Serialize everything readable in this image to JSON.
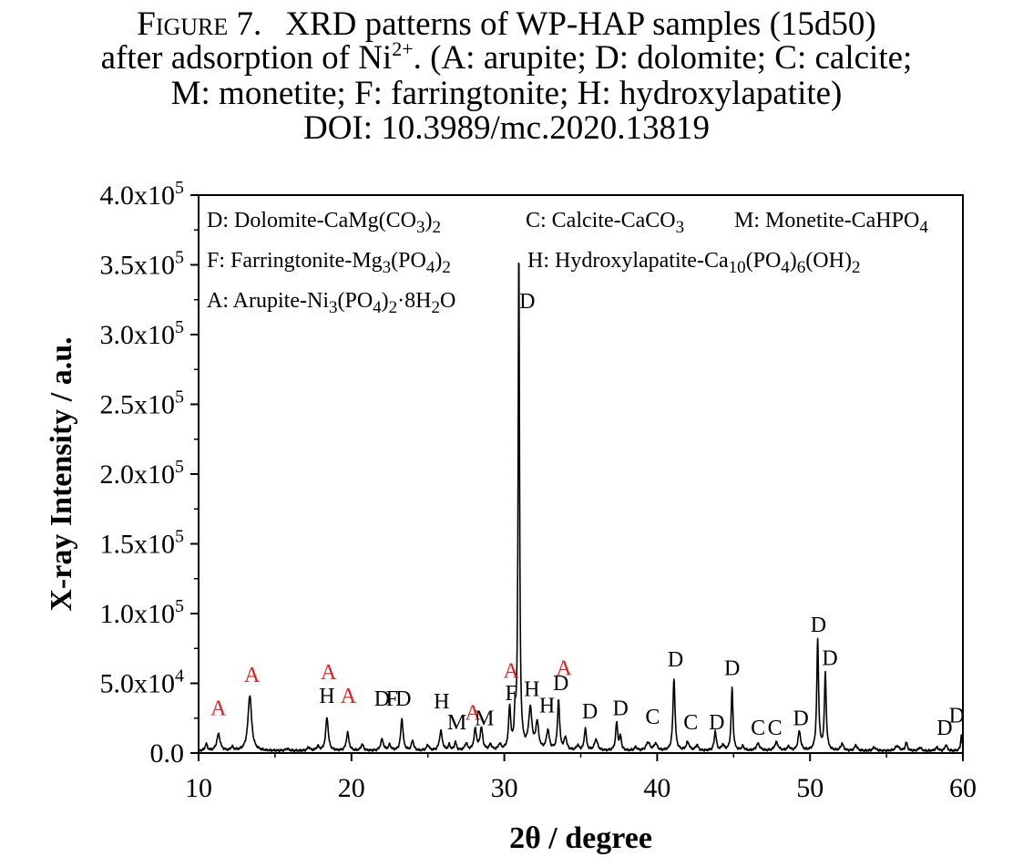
{
  "caption": {
    "lines": [
      [
        {
          "text": "Figure 7.",
          "style": "figure-label"
        },
        {
          "text": "",
          "style": "gap"
        },
        {
          "text": "XRD patterns of WP-HAP samples (15d50)"
        }
      ],
      [
        {
          "text": "after adsorption of Ni"
        },
        {
          "text": "2+",
          "style": "sup"
        },
        {
          "text": ". (A: arupite; D: dolomite; C: calcite;"
        }
      ],
      [
        {
          "text": "M: monetite; F: farringtonite; H: hydroxylapatite)"
        }
      ],
      [
        {
          "text": "DOI: 10.3989/mc.2020.13819"
        }
      ]
    ]
  },
  "chart_data": {
    "type": "line",
    "title": "",
    "xlabel": "2θ / degree",
    "ylabel": "X-ray Intensity / a.u.",
    "xlim": [
      10,
      60
    ],
    "ylim": [
      0,
      400000
    ],
    "x_ticks": [
      10,
      20,
      30,
      40,
      50,
      60
    ],
    "x_tick_labels": [
      "10",
      "20",
      "30",
      "40",
      "50",
      "60"
    ],
    "y_ticks": [
      0,
      50000,
      100000,
      150000,
      200000,
      250000,
      300000,
      350000,
      400000
    ],
    "y_tick_labels": [
      {
        "mantissa": "0.0",
        "exp": ""
      },
      {
        "mantissa": "5.0x10",
        "exp": "4"
      },
      {
        "mantissa": "1.0x10",
        "exp": "5"
      },
      {
        "mantissa": "1.5x10",
        "exp": "5"
      },
      {
        "mantissa": "2.0x10",
        "exp": "5"
      },
      {
        "mantissa": "2.5x10",
        "exp": "5"
      },
      {
        "mantissa": "3.0x10",
        "exp": "5"
      },
      {
        "mantissa": "3.5x10",
        "exp": "5"
      },
      {
        "mantissa": "4.0x10",
        "exp": "5"
      }
    ],
    "grid": false,
    "line_color": "#000000",
    "series": [
      {
        "baseline": 1500,
        "peaks": [
          [
            10.5,
            5000,
            0.08
          ],
          [
            11.3,
            12000,
            0.13
          ],
          [
            12.2,
            2500,
            0.1
          ],
          [
            13.35,
            40000,
            0.14
          ],
          [
            15.8,
            1500,
            0.12
          ],
          [
            17.2,
            2500,
            0.1
          ],
          [
            17.8,
            3000,
            0.1
          ],
          [
            18.4,
            24000,
            0.1
          ],
          [
            19.75,
            13000,
            0.1
          ],
          [
            20.7,
            4500,
            0.1
          ],
          [
            22.0,
            8000,
            0.11
          ],
          [
            22.5,
            4000,
            0.1
          ],
          [
            23.3,
            23000,
            0.09
          ],
          [
            24.0,
            7000,
            0.09
          ],
          [
            25.0,
            4000,
            0.1
          ],
          [
            25.85,
            14000,
            0.11
          ],
          [
            26.4,
            4000,
            0.08
          ],
          [
            26.8,
            6000,
            0.08
          ],
          [
            27.5,
            5000,
            0.1
          ],
          [
            28.1,
            15000,
            0.1
          ],
          [
            28.5,
            16000,
            0.1
          ],
          [
            29.1,
            4000,
            0.1
          ],
          [
            29.7,
            4000,
            0.1
          ],
          [
            30.35,
            30000,
            0.08
          ],
          [
            30.7,
            20000,
            0.06
          ],
          [
            30.95,
            358000,
            0.055
          ],
          [
            31.7,
            29000,
            0.13
          ],
          [
            32.15,
            19000,
            0.11
          ],
          [
            32.85,
            14000,
            0.11
          ],
          [
            33.55,
            36000,
            0.08
          ],
          [
            34.0,
            9000,
            0.1
          ],
          [
            34.8,
            3500,
            0.1
          ],
          [
            35.3,
            16000,
            0.08
          ],
          [
            36.0,
            8000,
            0.12
          ],
          [
            37.35,
            20000,
            0.08
          ],
          [
            37.6,
            10000,
            0.07
          ],
          [
            38.6,
            2500,
            0.1
          ],
          [
            39.4,
            6000,
            0.14
          ],
          [
            39.9,
            5000,
            0.12
          ],
          [
            41.1,
            52000,
            0.08
          ],
          [
            42.0,
            6000,
            0.12
          ],
          [
            42.6,
            4000,
            0.1
          ],
          [
            43.8,
            14000,
            0.08
          ],
          [
            44.3,
            4000,
            0.1
          ],
          [
            44.9,
            45000,
            0.07
          ],
          [
            45.6,
            3000,
            0.1
          ],
          [
            46.6,
            5000,
            0.14
          ],
          [
            47.8,
            6000,
            0.14
          ],
          [
            48.6,
            3000,
            0.1
          ],
          [
            49.3,
            14000,
            0.1
          ],
          [
            50.5,
            79000,
            0.07
          ],
          [
            51.0,
            55000,
            0.07
          ],
          [
            52.1,
            5000,
            0.1
          ],
          [
            53.0,
            4000,
            0.1
          ],
          [
            54.2,
            2500,
            0.12
          ],
          [
            55.7,
            3500,
            0.15
          ],
          [
            56.3,
            6000,
            0.08
          ],
          [
            57.2,
            2500,
            0.1
          ],
          [
            58.3,
            2500,
            0.1
          ],
          [
            58.9,
            4500,
            0.08
          ],
          [
            59.9,
            11000,
            0.06
          ]
        ]
      }
    ],
    "legend": {
      "placement": "top-left",
      "entries": [
        {
          "parts": [
            [
              "D: Dolomite-CaMg(CO"
            ],
            [
              "3",
              "sub"
            ],
            [
              ")"
            ],
            [
              "2",
              "sub"
            ]
          ]
        },
        {
          "parts": [
            [
              "C: Calcite-CaCO"
            ],
            [
              "3",
              "sub"
            ]
          ]
        },
        {
          "parts": [
            [
              "M: Monetite-CaHPO"
            ],
            [
              "4",
              "sub"
            ]
          ]
        },
        {
          "parts": [
            [
              "F: Farringtonite-Mg"
            ],
            [
              "3",
              "sub"
            ],
            [
              "(PO"
            ],
            [
              "4",
              "sub"
            ],
            [
              ")"
            ],
            [
              "2",
              "sub"
            ]
          ]
        },
        {
          "parts": [
            [
              "H: Hydroxylapatite-Ca"
            ],
            [
              "10",
              "sub"
            ],
            [
              "(PO"
            ],
            [
              "4",
              "sub"
            ],
            [
              ")"
            ],
            [
              "6",
              "sub"
            ],
            [
              "(OH)"
            ],
            [
              "2",
              "sub"
            ]
          ]
        },
        {
          "parts": [
            [
              "A: Arupite-Ni"
            ],
            [
              "3",
              "sub"
            ],
            [
              "(PO"
            ],
            [
              "4",
              "sub"
            ],
            [
              ")"
            ],
            [
              "2",
              "sub"
            ],
            [
              "·8H"
            ],
            [
              "2",
              "sub"
            ],
            [
              "O"
            ]
          ]
        }
      ]
    },
    "peak_label_colors": {
      "A": "#e02020",
      "default": "#000000"
    },
    "peak_labels": [
      {
        "text": "A",
        "x": 11.3,
        "y": 27000
      },
      {
        "text": "A",
        "x": 13.5,
        "y": 51000
      },
      {
        "text": "A",
        "x": 18.5,
        "y": 53000
      },
      {
        "text": "H",
        "x": 18.4,
        "y": 36000
      },
      {
        "text": "A",
        "x": 19.8,
        "y": 36000
      },
      {
        "text": "D",
        "x": 22.0,
        "y": 34000
      },
      {
        "text": "F",
        "x": 22.65,
        "y": 34000
      },
      {
        "text": "D",
        "x": 23.4,
        "y": 34000
      },
      {
        "text": "H",
        "x": 25.9,
        "y": 32000
      },
      {
        "text": "M",
        "x": 26.9,
        "y": 17000
      },
      {
        "text": "A",
        "x": 27.95,
        "y": 24000
      },
      {
        "text": "M",
        "x": 28.7,
        "y": 20000
      },
      {
        "text": "A",
        "x": 30.45,
        "y": 54000
      },
      {
        "text": "F",
        "x": 30.45,
        "y": 38000
      },
      {
        "text": "D",
        "x": 31.5,
        "y": 319000
      },
      {
        "text": "H",
        "x": 31.8,
        "y": 41000
      },
      {
        "text": "A",
        "x": 33.9,
        "y": 56000
      },
      {
        "text": "H",
        "x": 32.8,
        "y": 29000
      },
      {
        "text": "D",
        "x": 33.7,
        "y": 45000
      },
      {
        "text": "D",
        "x": 35.6,
        "y": 25000
      },
      {
        "text": "D",
        "x": 37.6,
        "y": 27000
      },
      {
        "text": "C",
        "x": 39.7,
        "y": 21000
      },
      {
        "text": "D",
        "x": 41.2,
        "y": 62000
      },
      {
        "text": "C",
        "x": 42.2,
        "y": 17000
      },
      {
        "text": "D",
        "x": 43.9,
        "y": 17000
      },
      {
        "text": "D",
        "x": 44.9,
        "y": 56000
      },
      {
        "text": "C",
        "x": 46.6,
        "y": 13000
      },
      {
        "text": "C",
        "x": 47.7,
        "y": 13000
      },
      {
        "text": "D",
        "x": 49.4,
        "y": 20000
      },
      {
        "text": "D",
        "x": 50.55,
        "y": 87000
      },
      {
        "text": "D",
        "x": 51.3,
        "y": 63000
      },
      {
        "text": "D",
        "x": 58.8,
        "y": 13000
      },
      {
        "text": "D",
        "x": 59.6,
        "y": 22000
      }
    ]
  }
}
